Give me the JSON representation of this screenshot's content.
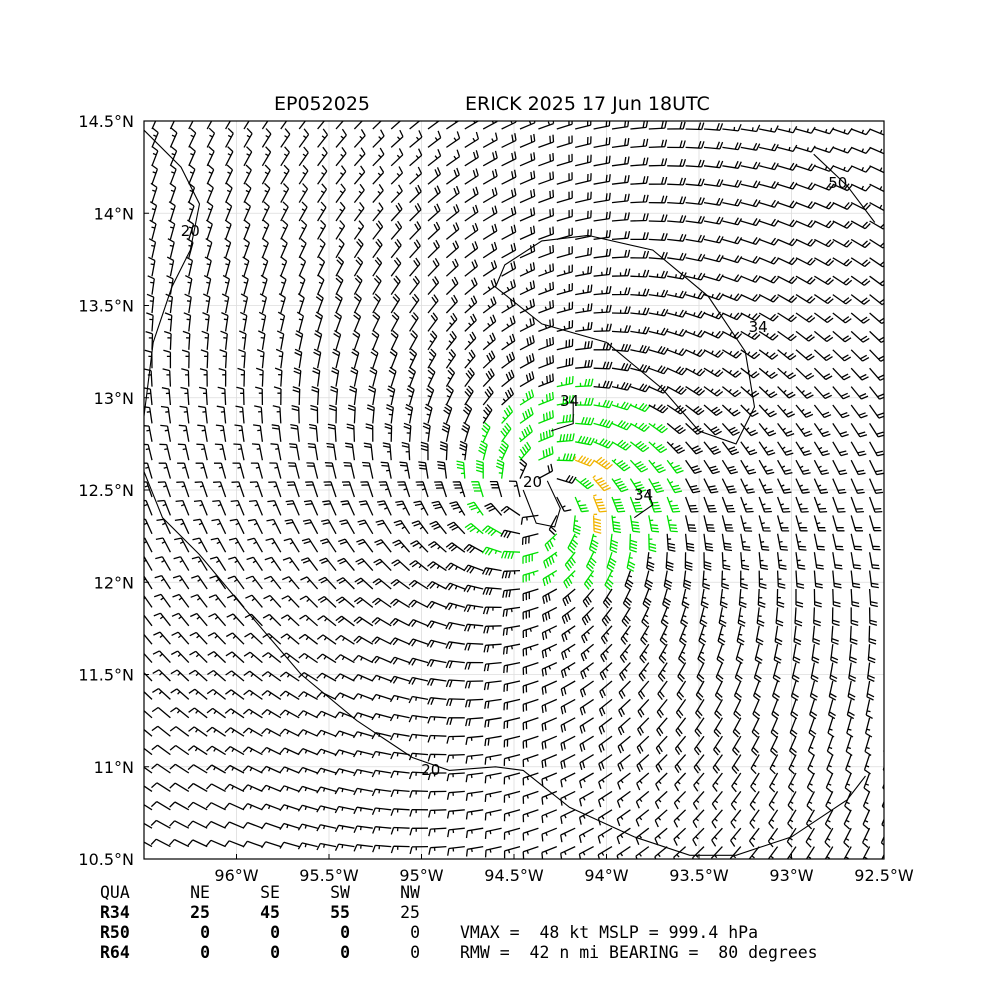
{
  "title": {
    "left": "EP052025",
    "right": "ERICK 2025 17 Jun 18UTC"
  },
  "colors": {
    "below34": "#000000",
    "r34": "#00e000",
    "r50": "#f0b400",
    "contour": "#000000"
  },
  "chart_data": {
    "type": "wind-barb",
    "storm_id": "EP052025",
    "storm_name": "ERICK",
    "xlim": [
      -96.5,
      -92.5
    ],
    "ylim": [
      10.5,
      14.5
    ],
    "x_ticks": [
      -96,
      -95.5,
      -95,
      -94.5,
      -94,
      -93.5,
      -93,
      -92.5
    ],
    "x_tick_labels": [
      "96°W",
      "95.5°W",
      "95°W",
      "94.5°W",
      "94°W",
      "93.5°W",
      "93°W",
      "92.5°W"
    ],
    "y_ticks": [
      10.5,
      11,
      11.5,
      12,
      12.5,
      13,
      13.5,
      14,
      14.5
    ],
    "y_tick_labels": [
      "10.5°N",
      "11°N",
      "11.5°N",
      "12°N",
      "12.5°N",
      "13°N",
      "13.5°N",
      "14°N",
      "14.5°N"
    ],
    "grid": true,
    "center": {
      "lon": -94.35,
      "lat": 12.45
    },
    "contour_labels": [
      {
        "text": "20",
        "lon": -96.25,
        "lat": 13.9
      },
      {
        "text": "20",
        "lon": -94.95,
        "lat": 10.98
      },
      {
        "text": "20",
        "lon": -94.4,
        "lat": 12.54
      },
      {
        "text": "34",
        "lon": -94.2,
        "lat": 12.98
      },
      {
        "text": "34",
        "lon": -93.8,
        "lat": 12.47
      },
      {
        "text": "34",
        "lon": -93.18,
        "lat": 13.38
      },
      {
        "text": "50",
        "lon": -92.75,
        "lat": 14.16
      }
    ],
    "contours": [
      [
        [
          -96.5,
          14.45
        ],
        [
          -96.3,
          14.25
        ],
        [
          -96.2,
          14.05
        ],
        [
          -96.25,
          13.8
        ],
        [
          -96.35,
          13.6
        ],
        [
          -96.45,
          13.3
        ],
        [
          -96.5,
          12.9
        ]
      ],
      [
        [
          -96.5,
          12.6
        ],
        [
          -96.4,
          12.35
        ],
        [
          -96.2,
          12.15
        ],
        [
          -95.95,
          11.85
        ],
        [
          -95.65,
          11.5
        ],
        [
          -95.35,
          11.25
        ],
        [
          -95.05,
          11.05
        ],
        [
          -94.85,
          10.98
        ],
        [
          -94.6,
          11.0
        ],
        [
          -94.45,
          10.98
        ],
        [
          -94.2,
          10.78
        ],
        [
          -93.85,
          10.62
        ],
        [
          -93.55,
          10.52
        ],
        [
          -93.3,
          10.52
        ],
        [
          -93.0,
          10.62
        ],
        [
          -92.7,
          10.82
        ],
        [
          -92.6,
          10.95
        ]
      ],
      [
        [
          -94.45,
          12.5
        ],
        [
          -94.38,
          12.32
        ],
        [
          -94.28,
          12.3
        ],
        [
          -94.25,
          12.4
        ],
        [
          -94.32,
          12.55
        ]
      ],
      [
        [
          -94.3,
          12.82
        ],
        [
          -94.18,
          12.86
        ],
        [
          -94.18,
          12.98
        ]
      ],
      [
        [
          -93.85,
          12.35
        ],
        [
          -93.75,
          12.42
        ],
        [
          -93.78,
          12.5
        ]
      ],
      [
        [
          -94.1,
          13.88
        ],
        [
          -93.75,
          13.8
        ],
        [
          -93.45,
          13.55
        ],
        [
          -93.25,
          13.25
        ],
        [
          -93.2,
          12.95
        ],
        [
          -93.3,
          12.75
        ],
        [
          -93.5,
          12.82
        ],
        [
          -93.7,
          13.05
        ],
        [
          -94.0,
          13.3
        ],
        [
          -94.35,
          13.4
        ],
        [
          -94.6,
          13.6
        ],
        [
          -94.55,
          13.72
        ],
        [
          -94.35,
          13.85
        ],
        [
          -94.1,
          13.88
        ]
      ],
      [
        [
          -92.88,
          14.32
        ],
        [
          -92.7,
          14.15
        ],
        [
          -92.55,
          13.95
        ]
      ]
    ]
  },
  "table": {
    "header": [
      "QUA",
      "NE",
      "SE",
      "SW",
      "NW"
    ],
    "rows": [
      [
        "R34",
        "25",
        "45",
        "55",
        "25"
      ],
      [
        "R50",
        "0",
        "0",
        "0",
        "0"
      ],
      [
        "R64",
        "0",
        "0",
        "0",
        "0"
      ]
    ]
  },
  "info": {
    "line1": "VMAX =  48 kt MSLP = 999.4 hPa",
    "line2": "RMW =  42 n mi BEARING =  80 degrees"
  }
}
